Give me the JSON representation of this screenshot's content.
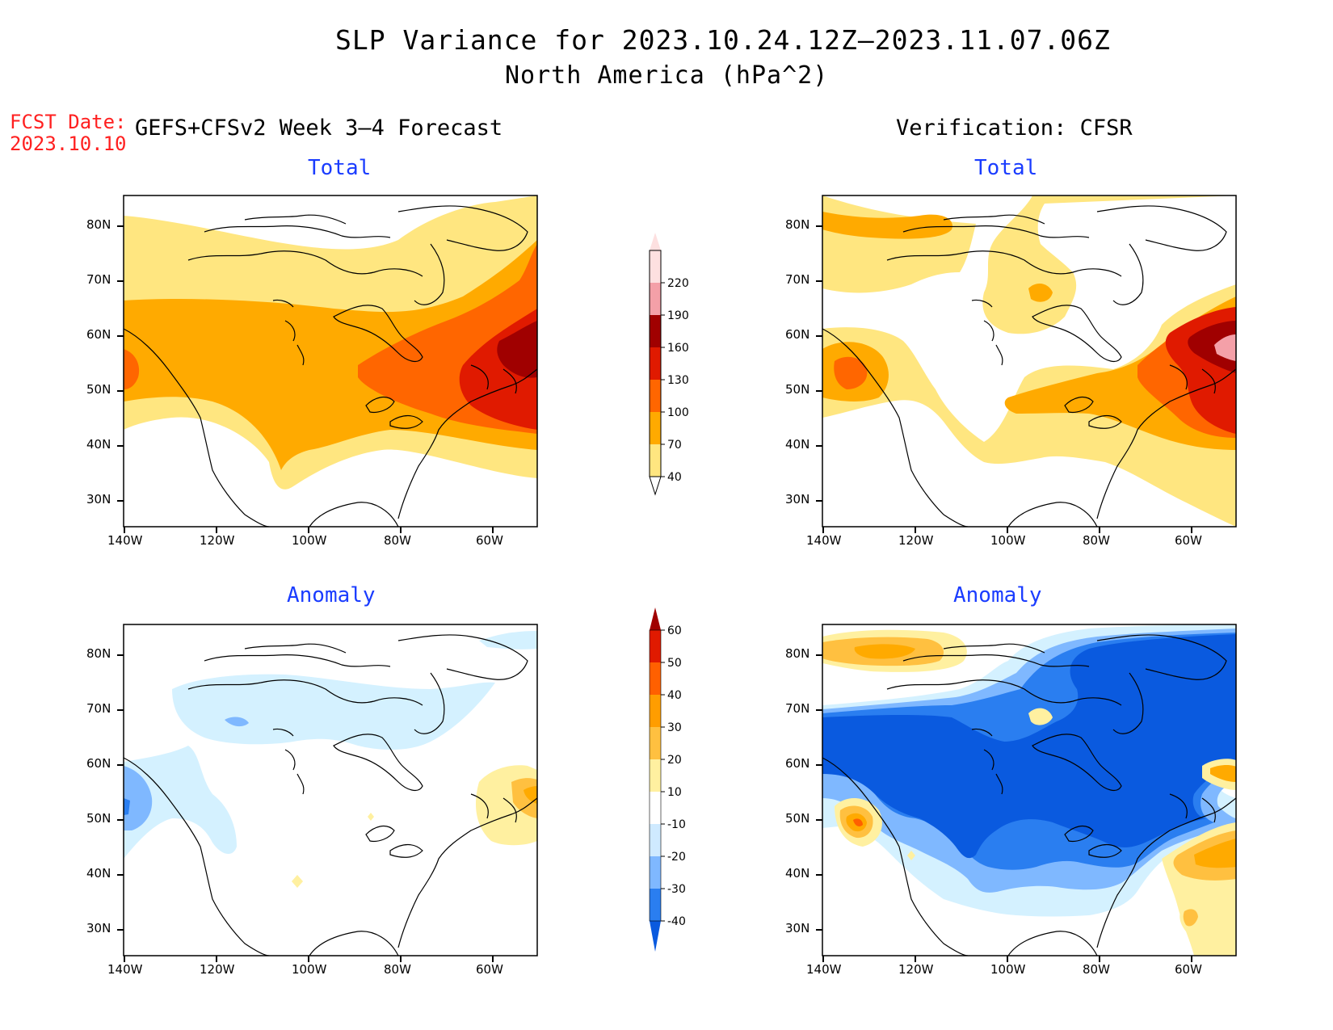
{
  "title": {
    "line1": "SLP Variance for 2023.10.24.12Z–2023.11.07.06Z",
    "line2": "North America (hPa^2)"
  },
  "fcst": {
    "label": "FCST Date:",
    "date": "2023.10.10"
  },
  "columns": {
    "left": "GEFS+CFSv2 Week 3–4 Forecast",
    "right": "Verification: CFSR"
  },
  "panels": {
    "total": "Total",
    "anomaly": "Anomaly"
  },
  "axes": {
    "lat_labels": [
      "80N",
      "70N",
      "60N",
      "50N",
      "40N",
      "30N"
    ],
    "lon_labels": [
      "140W",
      "120W",
      "100W",
      "80W",
      "60W"
    ]
  },
  "colorbars": {
    "total": {
      "levels": [
        "40",
        "70",
        "100",
        "130",
        "160",
        "190",
        "220"
      ],
      "colors": [
        "#ffe680",
        "#ffaa00",
        "#ff6600",
        "#e01a00",
        "#a00000",
        "#f4a0a8",
        "#fde0e0"
      ]
    },
    "anomaly": {
      "levels": [
        "-40",
        "-30",
        "-20",
        "-10",
        "10",
        "20",
        "30",
        "40",
        "50",
        "60"
      ],
      "colors": [
        "#0a5adf",
        "#2a7ef0",
        "#7fb8ff",
        "#cfeaff",
        "#ffffff",
        "#fff0a0",
        "#ffc040",
        "#ff9d00",
        "#ff6000",
        "#e01a00",
        "#a00000"
      ]
    }
  },
  "colors": {
    "yellow": "#ffe680",
    "orange": "#ffaa00",
    "dark_orange": "#ff6600",
    "red": "#e01a00",
    "dark_red": "#a00000",
    "pink": "#f4a0a8",
    "light_blue": "#d4f1ff",
    "mid_blue": "#7fb8ff",
    "blue": "#2a7ef0",
    "dark_blue": "#0a5adf",
    "title_blue": "#1a3cff",
    "fcst_red": "#ff2020"
  }
}
